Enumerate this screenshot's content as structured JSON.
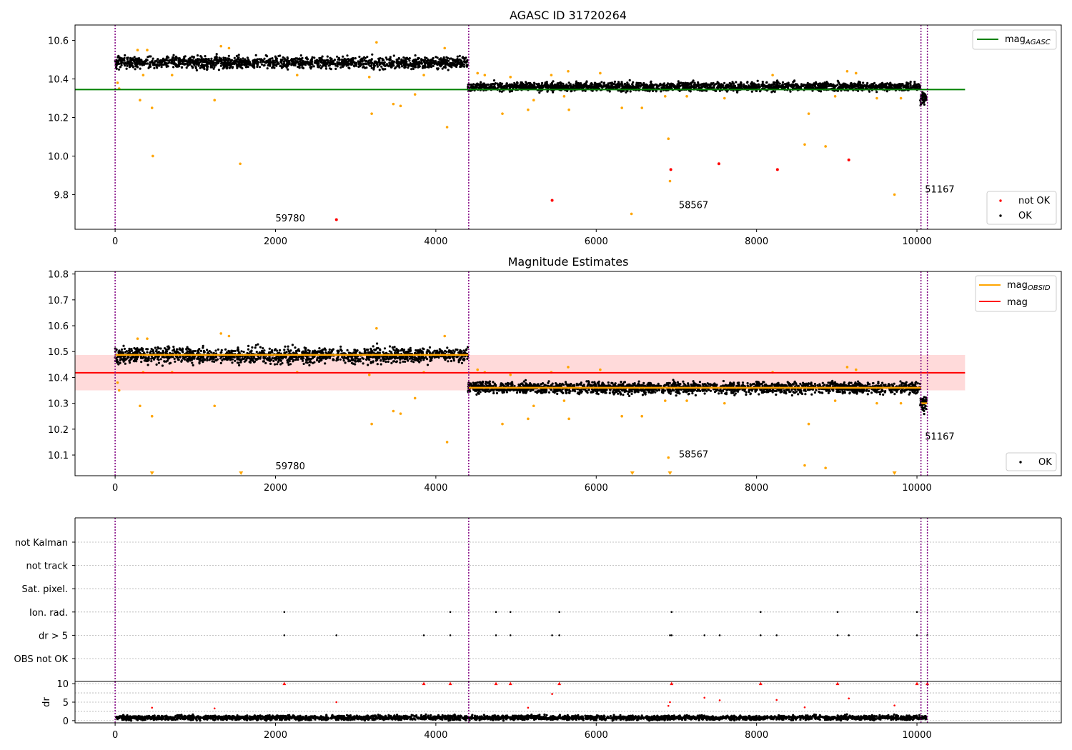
{
  "figure": {
    "colors": {
      "ok": "#000000",
      "not_ok": "#ff0000",
      "flagged": "#ffa500",
      "agasc_line": "#008000",
      "obs_lines": "#ffa500",
      "mag_line": "#ff0000",
      "mag_band": "#ffdada",
      "markers": "#800080",
      "grid": "#b0b0b0"
    }
  },
  "chart_data": [
    {
      "type": "scatter",
      "title": "AGASC ID 31720264",
      "xlim": [
        -500,
        11800
      ],
      "ylim": [
        9.62,
        10.68
      ],
      "xticks": [
        0,
        2000,
        4000,
        6000,
        8000,
        10000
      ],
      "yticks": [
        9.8,
        10.0,
        10.2,
        10.4,
        10.6
      ],
      "grid": false,
      "legend": [
        {
          "label": "mag",
          "sub": "AGASC",
          "kind": "line",
          "color": "#008000",
          "location": "upper right"
        },
        {
          "label": "not OK",
          "kind": "point",
          "color": "#ff0000",
          "location": "lower right"
        },
        {
          "label": "OK",
          "kind": "point",
          "color": "#000000",
          "location": "lower right"
        }
      ],
      "lines": [
        {
          "name": "mag_AGASC",
          "y": 10.345,
          "x": [
            -500,
            10600
          ],
          "color": "#008000"
        }
      ],
      "dense_segments": [
        {
          "x": [
            0,
            4400
          ],
          "center": 10.485,
          "spread": 0.03,
          "n": 1500
        },
        {
          "x": [
            4400,
            10040
          ],
          "center": 10.36,
          "spread": 0.022,
          "n": 2000
        },
        {
          "x": [
            10040,
            10120
          ],
          "center": 10.3,
          "spread": 0.03,
          "n": 60
        }
      ],
      "orange_points": [
        [
          30,
          10.38
        ],
        [
          50,
          10.35
        ],
        [
          280,
          10.55
        ],
        [
          310,
          10.29
        ],
        [
          350,
          10.42
        ],
        [
          400,
          10.55
        ],
        [
          460,
          10.25
        ],
        [
          470,
          10.0
        ],
        [
          710,
          10.42
        ],
        [
          1240,
          10.29
        ],
        [
          1320,
          10.57
        ],
        [
          1560,
          9.96
        ],
        [
          1420,
          10.56
        ],
        [
          2270,
          10.42
        ],
        [
          3170,
          10.41
        ],
        [
          3200,
          10.22
        ],
        [
          3260,
          10.59
        ],
        [
          3470,
          10.27
        ],
        [
          3560,
          10.26
        ],
        [
          3740,
          10.32
        ],
        [
          3850,
          10.42
        ],
        [
          4110,
          10.56
        ],
        [
          4140,
          10.15
        ],
        [
          4520,
          10.43
        ],
        [
          4610,
          10.42
        ],
        [
          4830,
          10.22
        ],
        [
          4930,
          10.41
        ],
        [
          5150,
          10.24
        ],
        [
          5220,
          10.29
        ],
        [
          5440,
          10.42
        ],
        [
          5600,
          10.31
        ],
        [
          5660,
          10.24
        ],
        [
          5650,
          10.44
        ],
        [
          6050,
          10.43
        ],
        [
          6320,
          10.25
        ],
        [
          6440,
          9.7
        ],
        [
          6570,
          10.25
        ],
        [
          6860,
          10.31
        ],
        [
          6900,
          10.09
        ],
        [
          6920,
          9.87
        ],
        [
          7130,
          10.31
        ],
        [
          7600,
          10.3
        ],
        [
          8200,
          10.42
        ],
        [
          8600,
          10.06
        ],
        [
          8650,
          10.22
        ],
        [
          8860,
          10.05
        ],
        [
          8980,
          10.31
        ],
        [
          9130,
          10.44
        ],
        [
          9240,
          10.43
        ],
        [
          9500,
          10.3
        ],
        [
          9720,
          9.8
        ],
        [
          9800,
          10.3
        ]
      ],
      "red_points": [
        [
          2760,
          9.67
        ],
        [
          5450,
          9.77
        ],
        [
          6930,
          9.93
        ],
        [
          7530,
          9.96
        ],
        [
          8260,
          9.93
        ],
        [
          9150,
          9.98
        ]
      ],
      "vlines": [
        0,
        4410,
        10050,
        10130
      ],
      "annotations": [
        {
          "x": 2000,
          "y": 9.66,
          "text": "59780"
        },
        {
          "x": 7030,
          "y": 9.73,
          "text": "58567"
        },
        {
          "x": 10100,
          "y": 9.81,
          "text": "51167"
        }
      ]
    },
    {
      "type": "scatter",
      "title": "Magnitude Estimates",
      "xlim": [
        -500,
        11800
      ],
      "ylim": [
        10.02,
        10.81
      ],
      "xticks": [
        0,
        2000,
        4000,
        6000,
        8000,
        10000
      ],
      "yticks": [
        10.1,
        10.2,
        10.3,
        10.4,
        10.5,
        10.6,
        10.7,
        10.8
      ],
      "grid": false,
      "legend": [
        {
          "label": "mag",
          "sub": "OBSID",
          "kind": "line",
          "color": "#ffa500",
          "location": "upper right"
        },
        {
          "label": "mag",
          "kind": "line",
          "color": "#ff0000",
          "location": "upper right"
        },
        {
          "label": "OK",
          "kind": "point",
          "color": "#000000",
          "location": "lower right"
        }
      ],
      "mag": {
        "value": 10.418,
        "band": [
          10.35,
          10.487
        ],
        "x": [
          -500,
          10600
        ]
      },
      "obs_lines": [
        {
          "x": [
            0,
            4410
          ],
          "y": 10.487
        },
        {
          "x": [
            4410,
            10050
          ],
          "y": 10.36
        },
        {
          "x": [
            10050,
            10130
          ],
          "y": 10.3
        }
      ],
      "dense_segments": [
        {
          "x": [
            0,
            4400
          ],
          "center": 10.485,
          "spread": 0.03,
          "n": 1500
        },
        {
          "x": [
            4400,
            10040
          ],
          "center": 10.36,
          "spread": 0.022,
          "n": 2000
        },
        {
          "x": [
            10040,
            10120
          ],
          "center": 10.3,
          "spread": 0.03,
          "n": 60
        }
      ],
      "orange_points": [
        [
          30,
          10.38
        ],
        [
          50,
          10.35
        ],
        [
          280,
          10.55
        ],
        [
          310,
          10.29
        ],
        [
          350,
          10.42
        ],
        [
          400,
          10.55
        ],
        [
          460,
          10.25
        ],
        [
          710,
          10.42
        ],
        [
          1240,
          10.29
        ],
        [
          1320,
          10.57
        ],
        [
          1420,
          10.56
        ],
        [
          2270,
          10.42
        ],
        [
          3170,
          10.41
        ],
        [
          3200,
          10.22
        ],
        [
          3260,
          10.59
        ],
        [
          3470,
          10.27
        ],
        [
          3560,
          10.26
        ],
        [
          3740,
          10.32
        ],
        [
          3850,
          10.42
        ],
        [
          4110,
          10.56
        ],
        [
          4140,
          10.15
        ],
        [
          4520,
          10.43
        ],
        [
          4610,
          10.42
        ],
        [
          4830,
          10.22
        ],
        [
          4930,
          10.41
        ],
        [
          5150,
          10.24
        ],
        [
          5220,
          10.29
        ],
        [
          5440,
          10.42
        ],
        [
          5600,
          10.31
        ],
        [
          5660,
          10.24
        ],
        [
          5650,
          10.44
        ],
        [
          6050,
          10.43
        ],
        [
          6320,
          10.25
        ],
        [
          6570,
          10.25
        ],
        [
          6860,
          10.31
        ],
        [
          6900,
          10.09
        ],
        [
          7130,
          10.31
        ],
        [
          7600,
          10.3
        ],
        [
          8200,
          10.42
        ],
        [
          8600,
          10.06
        ],
        [
          8650,
          10.22
        ],
        [
          8860,
          10.05
        ],
        [
          8980,
          10.31
        ],
        [
          9130,
          10.44
        ],
        [
          9240,
          10.43
        ],
        [
          9500,
          10.3
        ],
        [
          9800,
          10.3
        ]
      ],
      "down_markers": [
        460,
        1570,
        6450,
        6920,
        9720
      ],
      "vlines": [
        0,
        4410,
        10050,
        10130
      ],
      "annotations": [
        {
          "x": 2000,
          "y": 10.045,
          "text": "59780"
        },
        {
          "x": 7030,
          "y": 10.09,
          "text": "58567"
        },
        {
          "x": 10100,
          "y": 10.16,
          "text": "51167"
        }
      ]
    },
    {
      "type": "scatter",
      "title": "",
      "xlim": [
        -500,
        11800
      ],
      "category_rows": [
        "not Kalman",
        "not track",
        "Sat. pixel.",
        "Ion. rad.",
        "dr > 5",
        "OBS not OK"
      ],
      "flags": {
        "Ion. rad.": [
          2110,
          4180,
          4750,
          4930,
          5540,
          6940,
          8050,
          9010,
          10000
        ],
        "dr > 5": [
          2110,
          2760,
          3850,
          4180,
          4750,
          4930,
          5450,
          5540,
          6920,
          6940,
          7350,
          7540,
          8050,
          8250,
          9010,
          9150,
          10000,
          10130
        ]
      },
      "grid": true
    },
    {
      "type": "scatter",
      "title": "",
      "ylabel": "dr",
      "xlim": [
        -500,
        11800
      ],
      "ylim": [
        -0.6,
        10.6
      ],
      "xticks": [
        0,
        2000,
        4000,
        6000,
        8000,
        10000
      ],
      "yticks": [
        0,
        5,
        10
      ],
      "grid": true,
      "dense_segment": {
        "x": [
          0,
          10120
        ],
        "center": 0.8,
        "spread": 0.6,
        "n": 3000
      },
      "red_points": [
        [
          460,
          3.5
        ],
        [
          1240,
          3.3
        ],
        [
          2760,
          5.0
        ],
        [
          5150,
          3.5
        ],
        [
          5450,
          7.2
        ],
        [
          6900,
          4.0
        ],
        [
          6920,
          5.0
        ],
        [
          7350,
          6.2
        ],
        [
          7540,
          5.5
        ],
        [
          8250,
          5.6
        ],
        [
          8600,
          3.6
        ],
        [
          9150,
          6.0
        ],
        [
          9720,
          4.1
        ]
      ],
      "red_triangles": [
        2110,
        3850,
        4180,
        4750,
        4930,
        5540,
        6940,
        8050,
        9010,
        10000,
        10130
      ],
      "vlines": [
        0,
        4410,
        10050,
        10130
      ]
    }
  ]
}
